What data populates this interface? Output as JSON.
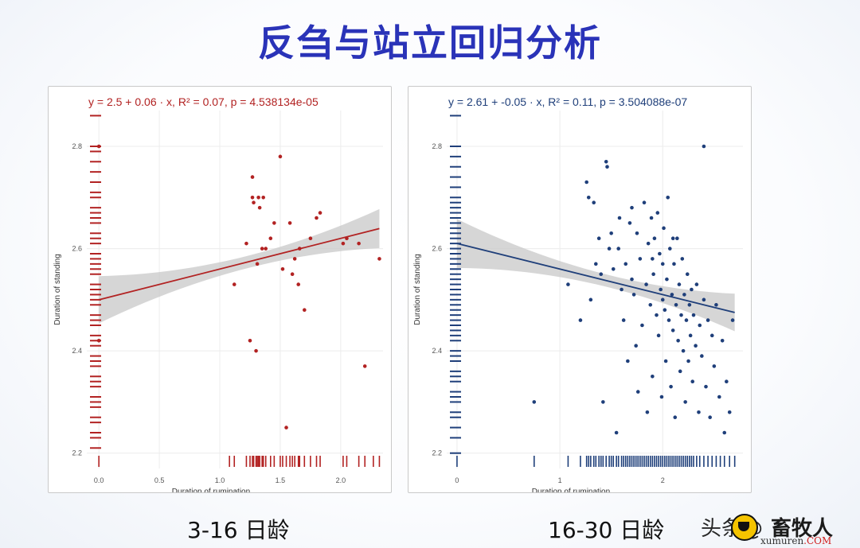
{
  "title": "反刍与站立回归分析",
  "captions": {
    "left": "3-16 日龄",
    "right": "16-30 日龄"
  },
  "watermark": {
    "prefix": "头条@",
    "brand": "畜牧人",
    "url": "xumuren",
    "url_suffix": ".COM"
  },
  "chart_data": [
    {
      "type": "scatter",
      "color": "#b22222",
      "equation": "y = 2.5 + 0.06 · x,  R² = 0.07,  p = 4.538134e-05",
      "xlabel": "Duration of rumination",
      "ylabel": "Duration of standing",
      "xlim": [
        -0.1,
        2.35
      ],
      "ylim": [
        2.17,
        2.87
      ],
      "xticks": [
        0.0,
        0.5,
        1.0,
        1.5,
        2.0
      ],
      "xtick_labels": [
        "0.0",
        "0.5",
        "1.0",
        "1.5",
        "2.0"
      ],
      "yticks": [
        2.2,
        2.4,
        2.6,
        2.8
      ],
      "ytick_labels": [
        "2.2",
        "2.4",
        "2.6",
        "2.8"
      ],
      "fit": {
        "intercept": 2.5,
        "slope": 0.06,
        "x_range": [
          0,
          2.32
        ]
      },
      "points": [
        [
          1.12,
          2.53
        ],
        [
          1.22,
          2.61
        ],
        [
          1.25,
          2.42
        ],
        [
          1.27,
          2.74
        ],
        [
          1.27,
          2.7
        ],
        [
          1.28,
          2.69
        ],
        [
          1.3,
          2.4
        ],
        [
          1.31,
          2.57
        ],
        [
          1.32,
          2.7
        ],
        [
          1.33,
          2.68
        ],
        [
          1.35,
          2.6
        ],
        [
          1.36,
          2.7
        ],
        [
          1.38,
          2.6
        ],
        [
          1.42,
          2.62
        ],
        [
          1.45,
          2.65
        ],
        [
          1.5,
          2.78
        ],
        [
          1.52,
          2.56
        ],
        [
          1.55,
          2.25
        ],
        [
          1.58,
          2.65
        ],
        [
          1.6,
          2.55
        ],
        [
          1.62,
          2.58
        ],
        [
          1.65,
          2.53
        ],
        [
          1.66,
          2.6
        ],
        [
          1.7,
          2.48
        ],
        [
          1.75,
          2.62
        ],
        [
          1.8,
          2.66
        ],
        [
          1.83,
          2.67
        ],
        [
          2.02,
          2.61
        ],
        [
          2.05,
          2.62
        ],
        [
          2.15,
          2.61
        ],
        [
          2.2,
          2.37
        ],
        [
          2.32,
          2.58
        ],
        [
          0.0,
          2.8
        ],
        [
          0.0,
          2.42
        ]
      ],
      "rug_x": [
        1.08,
        1.12,
        1.22,
        1.25,
        1.27,
        1.28,
        1.3,
        1.31,
        1.32,
        1.33,
        1.35,
        1.36,
        1.38,
        1.42,
        1.45,
        1.5,
        1.52,
        1.55,
        1.58,
        1.6,
        1.62,
        1.65,
        1.66,
        1.7,
        1.75,
        1.8,
        1.83,
        2.02,
        2.05,
        2.15,
        2.2,
        2.27,
        2.32,
        0.0
      ],
      "rug_y": [
        2.21,
        2.23,
        2.24,
        2.26,
        2.27,
        2.29,
        2.3,
        2.31,
        2.33,
        2.34,
        2.35,
        2.37,
        2.38,
        2.39,
        2.41,
        2.42,
        2.43,
        2.45,
        2.46,
        2.47,
        2.49,
        2.5,
        2.51,
        2.52,
        2.53,
        2.55,
        2.56,
        2.57,
        2.58,
        2.59,
        2.61,
        2.62,
        2.63,
        2.65,
        2.66,
        2.67,
        2.68,
        2.7,
        2.71,
        2.73,
        2.75,
        2.77,
        2.79,
        2.8,
        2.86
      ]
    },
    {
      "type": "scatter",
      "color": "#1f3f7a",
      "equation": "y = 2.61 + -0.05 · x,  R² = 0.11,  p = 3.504088e-07",
      "xlabel": "Duration of rumination",
      "ylabel": "Duration of standing",
      "xlim": [
        -0.1,
        2.78
      ],
      "ylim": [
        2.17,
        2.87
      ],
      "xticks": [
        0,
        1,
        2
      ],
      "xtick_labels": [
        "0",
        "1",
        "2"
      ],
      "yticks": [
        2.2,
        2.4,
        2.6,
        2.8
      ],
      "ytick_labels": [
        "2.2",
        "2.4",
        "2.6",
        "2.8"
      ],
      "fit": {
        "intercept": 2.61,
        "slope": -0.05,
        "x_range": [
          0,
          2.7
        ]
      },
      "points": [
        [
          0.75,
          2.3
        ],
        [
          1.08,
          2.53
        ],
        [
          1.2,
          2.46
        ],
        [
          1.26,
          2.73
        ],
        [
          1.28,
          2.7
        ],
        [
          1.3,
          2.5
        ],
        [
          1.33,
          2.69
        ],
        [
          1.35,
          2.57
        ],
        [
          1.38,
          2.62
        ],
        [
          1.4,
          2.55
        ],
        [
          1.42,
          2.3
        ],
        [
          1.45,
          2.77
        ],
        [
          1.46,
          2.76
        ],
        [
          1.48,
          2.6
        ],
        [
          1.5,
          2.63
        ],
        [
          1.52,
          2.56
        ],
        [
          1.55,
          2.24
        ],
        [
          1.57,
          2.6
        ],
        [
          1.58,
          2.66
        ],
        [
          1.6,
          2.52
        ],
        [
          1.62,
          2.46
        ],
        [
          1.64,
          2.57
        ],
        [
          1.66,
          2.38
        ],
        [
          1.68,
          2.65
        ],
        [
          1.7,
          2.68
        ],
        [
          1.72,
          2.51
        ],
        [
          1.74,
          2.41
        ],
        [
          1.75,
          2.63
        ],
        [
          1.76,
          2.32
        ],
        [
          1.78,
          2.58
        ],
        [
          1.8,
          2.45
        ],
        [
          1.82,
          2.69
        ],
        [
          1.84,
          2.53
        ],
        [
          1.85,
          2.28
        ],
        [
          1.86,
          2.61
        ],
        [
          1.88,
          2.49
        ],
        [
          1.89,
          2.66
        ],
        [
          1.9,
          2.35
        ],
        [
          1.91,
          2.55
        ],
        [
          1.92,
          2.62
        ],
        [
          1.94,
          2.47
        ],
        [
          1.95,
          2.67
        ],
        [
          1.96,
          2.43
        ],
        [
          1.97,
          2.59
        ],
        [
          1.98,
          2.52
        ],
        [
          1.99,
          2.31
        ],
        [
          2.0,
          2.57
        ],
        [
          2.01,
          2.64
        ],
        [
          2.02,
          2.48
        ],
        [
          2.03,
          2.38
        ],
        [
          2.04,
          2.54
        ],
        [
          2.05,
          2.7
        ],
        [
          2.06,
          2.46
        ],
        [
          2.07,
          2.6
        ],
        [
          2.08,
          2.33
        ],
        [
          2.09,
          2.51
        ],
        [
          2.1,
          2.44
        ],
        [
          2.11,
          2.57
        ],
        [
          2.12,
          2.27
        ],
        [
          2.13,
          2.49
        ],
        [
          2.14,
          2.62
        ],
        [
          2.15,
          2.42
        ],
        [
          2.16,
          2.53
        ],
        [
          2.17,
          2.36
        ],
        [
          2.18,
          2.47
        ],
        [
          2.19,
          2.58
        ],
        [
          2.2,
          2.4
        ],
        [
          2.21,
          2.51
        ],
        [
          2.22,
          2.3
        ],
        [
          2.23,
          2.46
        ],
        [
          2.24,
          2.55
        ],
        [
          2.25,
          2.38
        ],
        [
          2.26,
          2.49
        ],
        [
          2.27,
          2.43
        ],
        [
          2.28,
          2.52
        ],
        [
          2.29,
          2.34
        ],
        [
          2.3,
          2.47
        ],
        [
          2.32,
          2.41
        ],
        [
          2.33,
          2.53
        ],
        [
          2.35,
          2.28
        ],
        [
          2.36,
          2.45
        ],
        [
          2.38,
          2.39
        ],
        [
          2.4,
          2.5
        ],
        [
          2.42,
          2.33
        ],
        [
          2.44,
          2.46
        ],
        [
          2.46,
          2.27
        ],
        [
          2.48,
          2.43
        ],
        [
          2.5,
          2.37
        ],
        [
          2.52,
          2.49
        ],
        [
          2.55,
          2.31
        ],
        [
          2.58,
          2.42
        ],
        [
          2.6,
          2.24
        ],
        [
          2.62,
          2.34
        ],
        [
          2.65,
          2.28
        ],
        [
          2.68,
          2.46
        ],
        [
          2.4,
          2.8
        ],
        [
          2.1,
          2.62
        ],
        [
          1.9,
          2.58
        ],
        [
          2.0,
          2.5
        ],
        [
          1.7,
          2.54
        ]
      ],
      "rug_x": [
        0.0,
        0.75,
        1.08,
        1.2,
        1.26,
        1.28,
        1.3,
        1.33,
        1.35,
        1.38,
        1.4,
        1.42,
        1.45,
        1.48,
        1.5,
        1.52,
        1.55,
        1.57,
        1.6,
        1.62,
        1.64,
        1.66,
        1.68,
        1.7,
        1.72,
        1.74,
        1.76,
        1.78,
        1.8,
        1.82,
        1.84,
        1.86,
        1.88,
        1.9,
        1.92,
        1.94,
        1.96,
        1.98,
        2.0,
        2.02,
        2.04,
        2.06,
        2.08,
        2.1,
        2.12,
        2.14,
        2.16,
        2.18,
        2.2,
        2.22,
        2.24,
        2.26,
        2.28,
        2.3,
        2.33,
        2.36,
        2.4,
        2.44,
        2.48,
        2.52,
        2.56,
        2.6,
        2.65,
        2.7
      ],
      "rug_y": [
        2.2,
        2.23,
        2.25,
        2.27,
        2.28,
        2.3,
        2.31,
        2.32,
        2.34,
        2.35,
        2.36,
        2.38,
        2.39,
        2.4,
        2.42,
        2.43,
        2.44,
        2.45,
        2.46,
        2.47,
        2.48,
        2.49,
        2.5,
        2.51,
        2.52,
        2.53,
        2.54,
        2.55,
        2.56,
        2.57,
        2.58,
        2.59,
        2.6,
        2.61,
        2.62,
        2.63,
        2.64,
        2.65,
        2.66,
        2.67,
        2.68,
        2.69,
        2.7,
        2.72,
        2.74,
        2.76,
        2.78,
        2.8,
        2.86
      ]
    }
  ]
}
